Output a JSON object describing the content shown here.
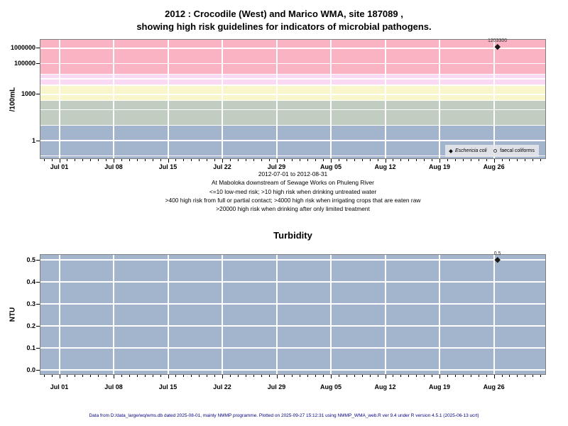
{
  "page": {
    "background": "#ffffff",
    "footer": "Data from D:/data_large/wq/wms.db dated 2025-08-01, mainly NMMP programme. Plotted on 2025-09-27 15:12:31 using NMMP_WMA_web.R ver 9.4 under R version 4.5.1 (2025-06-13 ucrt)",
    "footer_color": "#000080"
  },
  "chart_data": [
    {
      "id": "microbial-pathogens",
      "type": "scatter",
      "title_lines": [
        "2012 : Crocodile (West) and Marico WMA, site 187089 ,",
        "showing high risk guidelines for indicators of microbial pathogens."
      ],
      "ylabel": "/100mL",
      "y_scale": "log10",
      "ylim_displayed": [
        0.07,
        3500000
      ],
      "x_range": [
        "2012-07-01",
        "2012-08-31"
      ],
      "x_ticks": [
        {
          "date": "2012-07-01",
          "label": "Jul 01"
        },
        {
          "date": "2012-07-08",
          "label": "Jul 08"
        },
        {
          "date": "2012-07-15",
          "label": "Jul 15"
        },
        {
          "date": "2012-07-22",
          "label": "Jul 22"
        },
        {
          "date": "2012-07-29",
          "label": "Jul 29"
        },
        {
          "date": "2012-08-05",
          "label": "Aug 05"
        },
        {
          "date": "2012-08-12",
          "label": "Aug 12"
        },
        {
          "date": "2012-08-19",
          "label": "Aug 19"
        },
        {
          "date": "2012-08-26",
          "label": "Aug 26"
        }
      ],
      "y_ticks": [
        {
          "value": 1,
          "label": "1"
        },
        {
          "value": 1000,
          "label": "1000"
        },
        {
          "value": 100000,
          "label": "100000"
        },
        {
          "value": 1000000,
          "label": "1000000"
        }
      ],
      "grid": true,
      "risk_bands": [
        {
          "min": 20000,
          "max": null,
          "color": "#F9B3C2",
          "meaning": ">20000 high risk when drinking after only limited treatment"
        },
        {
          "min": 4000,
          "max": 20000,
          "color": "#FAD9F5",
          "meaning": ">4000 high risk when irrigating crops that are eaten raw"
        },
        {
          "min": 400,
          "max": 4000,
          "color": "#FAF6CB",
          "meaning": ">400 high risk from full or partial contact"
        },
        {
          "min": 10,
          "max": 400,
          "color": "#C1CDC1",
          "meaning": ">10 high risk when drinking untreated water"
        },
        {
          "min": null,
          "max": 10,
          "color": "#A2B5CD",
          "meaning": "<=10 low-med risk"
        }
      ],
      "series": [
        {
          "name": "Eschericia coli",
          "symbol": "filled-diamond",
          "italic": true,
          "points": [
            {
              "date": "2012-08-26",
              "value": 1203300,
              "label": "1203300"
            }
          ]
        },
        {
          "name": "faecal coliforms",
          "symbol": "open-circle",
          "italic": false,
          "points": []
        }
      ],
      "legend_position": "bottom-right",
      "captions": [
        "2012-07-01 to 2012-08-31",
        "At Maboloka downstream of Sewage Works on Phuleng River",
        "<=10 low-med risk; >10 high risk when drinking untreated water",
        ">400 high risk from full or partial contact; >4000 high risk when irrigating crops that are eaten raw",
        ">20000 high risk when drinking after only limited treatment"
      ]
    },
    {
      "id": "turbidity",
      "type": "scatter",
      "title": "Turbidity",
      "ylabel": "NTU",
      "y_scale": "linear",
      "ylim": [
        0.0,
        0.5
      ],
      "background_color": "#A2B5CD",
      "x_range": [
        "2012-07-01",
        "2012-08-31"
      ],
      "x_ticks": [
        {
          "date": "2012-07-01",
          "label": "Jul 01"
        },
        {
          "date": "2012-07-08",
          "label": "Jul 08"
        },
        {
          "date": "2012-07-15",
          "label": "Jul 15"
        },
        {
          "date": "2012-07-22",
          "label": "Jul 22"
        },
        {
          "date": "2012-07-29",
          "label": "Jul 29"
        },
        {
          "date": "2012-08-05",
          "label": "Aug 05"
        },
        {
          "date": "2012-08-12",
          "label": "Aug 12"
        },
        {
          "date": "2012-08-19",
          "label": "Aug 19"
        },
        {
          "date": "2012-08-26",
          "label": "Aug 26"
        }
      ],
      "y_ticks": [
        {
          "value": 0.0,
          "label": "0.0"
        },
        {
          "value": 0.1,
          "label": "0.1"
        },
        {
          "value": 0.2,
          "label": "0.2"
        },
        {
          "value": 0.3,
          "label": "0.3"
        },
        {
          "value": 0.4,
          "label": "0.4"
        },
        {
          "value": 0.5,
          "label": "0.5"
        }
      ],
      "grid": true,
      "series": [
        {
          "name": "turbidity",
          "symbol": "filled-diamond",
          "italic": false,
          "points": [
            {
              "date": "2012-08-26",
              "value": 0.5,
              "label": "0.5"
            }
          ]
        }
      ]
    }
  ]
}
